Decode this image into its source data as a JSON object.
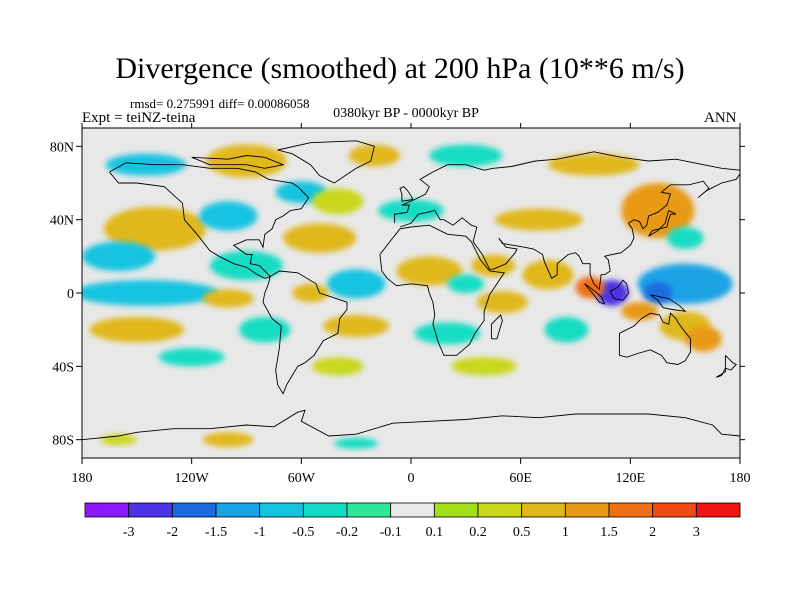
{
  "chart_data": {
    "type": "heatmap",
    "title": "Divergence (smoothed) at 200 hPa (10**6 m/s)",
    "stats": "rmsd= 0.275991  diff= 0.00086058",
    "experiment": "Expt = teiNZ-teina",
    "period": "0380kyr BP - 0000kyr BP",
    "season": "ANN",
    "xlim": [
      -180,
      180
    ],
    "ylim": [
      -90,
      90
    ],
    "x_ticks": [
      {
        "value": -180,
        "label": "180"
      },
      {
        "value": -120,
        "label": "120W"
      },
      {
        "value": -60,
        "label": "60W"
      },
      {
        "value": 0,
        "label": "0"
      },
      {
        "value": 60,
        "label": "60E"
      },
      {
        "value": 120,
        "label": "120E"
      },
      {
        "value": 180,
        "label": "180"
      }
    ],
    "y_ticks": [
      {
        "value": 80,
        "label": "80N"
      },
      {
        "value": 40,
        "label": "40N"
      },
      {
        "value": 0,
        "label": "0"
      },
      {
        "value": -40,
        "label": "40S"
      },
      {
        "value": -80,
        "label": "80S"
      }
    ],
    "colorbar": {
      "colors": [
        "#8c1aff",
        "#4d33e6",
        "#1a6ae0",
        "#1aa3e6",
        "#14c3e0",
        "#14dcc4",
        "#2ee89a",
        "#e8e8e8",
        "#a3e01a",
        "#c8d81a",
        "#e0b81a",
        "#e89a14",
        "#ef7014",
        "#f04a14",
        "#f01414"
      ],
      "labels": [
        "-3",
        "-2",
        "-1.5",
        "-1",
        "-0.5",
        "-0.2",
        "-0.1",
        "0.1",
        "0.2",
        "0.5",
        "1",
        "1.5",
        "2",
        "3"
      ]
    },
    "field_blobs": [
      {
        "lon": 150,
        "lat": 5,
        "rlon": 26,
        "rlat": 11,
        "value": -1.4
      },
      {
        "lon": 110,
        "lat": 0,
        "rlon": 9,
        "rlat": 7,
        "value": -2.1
      },
      {
        "lon": 135,
        "lat": 0,
        "rlon": 8,
        "rlat": 6,
        "value": -1.8
      },
      {
        "lon": 98,
        "lat": 3,
        "rlon": 8,
        "rlat": 6,
        "value": 1.6
      },
      {
        "lon": 125,
        "lat": -10,
        "rlon": 10,
        "rlat": 5,
        "value": 1.2
      },
      {
        "lon": 150,
        "lat": -18,
        "rlon": 14,
        "rlat": 8,
        "value": 0.9
      },
      {
        "lon": 160,
        "lat": -25,
        "rlon": 10,
        "rlat": 7,
        "value": 1.3
      },
      {
        "lon": 85,
        "lat": -20,
        "rlon": 12,
        "rlat": 7,
        "value": -0.5
      },
      {
        "lon": 75,
        "lat": 10,
        "rlon": 14,
        "rlat": 8,
        "value": 0.6
      },
      {
        "lon": 70,
        "lat": 40,
        "rlon": 24,
        "rlat": 6,
        "value": 0.8
      },
      {
        "lon": 135,
        "lat": 45,
        "rlon": 20,
        "rlat": 15,
        "value": 1.2
      },
      {
        "lon": 150,
        "lat": 30,
        "rlon": 10,
        "rlat": 6,
        "value": -0.5
      },
      {
        "lon": 100,
        "lat": 70,
        "rlon": 25,
        "rlat": 6,
        "value": 0.6
      },
      {
        "lon": 30,
        "lat": 75,
        "rlon": 20,
        "rlat": 6,
        "value": -0.3
      },
      {
        "lon": -20,
        "lat": 75,
        "rlon": 14,
        "rlat": 6,
        "value": 0.6
      },
      {
        "lon": -90,
        "lat": 72,
        "rlon": 22,
        "rlat": 9,
        "value": 0.5
      },
      {
        "lon": -145,
        "lat": 70,
        "rlon": 22,
        "rlat": 6,
        "value": -0.6
      },
      {
        "lon": -60,
        "lat": 55,
        "rlon": 14,
        "rlat": 6,
        "value": -0.6
      },
      {
        "lon": -140,
        "lat": 35,
        "rlon": 28,
        "rlat": 12,
        "value": 0.7
      },
      {
        "lon": -100,
        "lat": 42,
        "rlon": 16,
        "rlat": 8,
        "value": -0.6
      },
      {
        "lon": -160,
        "lat": 20,
        "rlon": 20,
        "rlat": 8,
        "value": -0.6
      },
      {
        "lon": -50,
        "lat": 30,
        "rlon": 20,
        "rlat": 8,
        "value": 0.5
      },
      {
        "lon": -40,
        "lat": 50,
        "rlon": 14,
        "rlat": 7,
        "value": 0.4
      },
      {
        "lon": 0,
        "lat": 45,
        "rlon": 18,
        "rlat": 6,
        "value": -0.4
      },
      {
        "lon": -145,
        "lat": 0,
        "rlon": 40,
        "rlat": 7,
        "value": -0.6
      },
      {
        "lon": -30,
        "lat": 5,
        "rlon": 16,
        "rlat": 8,
        "value": -0.8
      },
      {
        "lon": 10,
        "lat": 12,
        "rlon": 18,
        "rlat": 8,
        "value": 0.7
      },
      {
        "lon": 30,
        "lat": 5,
        "rlon": 10,
        "rlat": 5,
        "value": -0.5
      },
      {
        "lon": 45,
        "lat": 15,
        "rlon": 12,
        "rlat": 6,
        "value": 0.5
      },
      {
        "lon": -90,
        "lat": 15,
        "rlon": 20,
        "rlat": 8,
        "value": -0.5
      },
      {
        "lon": -100,
        "lat": -3,
        "rlon": 14,
        "rlat": 5,
        "value": 0.6
      },
      {
        "lon": -55,
        "lat": 0,
        "rlon": 10,
        "rlat": 5,
        "value": 0.9
      },
      {
        "lon": -150,
        "lat": -20,
        "rlon": 26,
        "rlat": 7,
        "value": 0.6
      },
      {
        "lon": -80,
        "lat": -20,
        "rlon": 14,
        "rlat": 7,
        "value": -0.5
      },
      {
        "lon": -30,
        "lat": -18,
        "rlon": 18,
        "rlat": 6,
        "value": 0.6
      },
      {
        "lon": 20,
        "lat": -22,
        "rlon": 18,
        "rlat": 6,
        "value": -0.5
      },
      {
        "lon": 50,
        "lat": -5,
        "rlon": 14,
        "rlat": 6,
        "value": 0.5
      },
      {
        "lon": -120,
        "lat": -35,
        "rlon": 18,
        "rlat": 5,
        "value": -0.4
      },
      {
        "lon": -40,
        "lat": -40,
        "rlon": 14,
        "rlat": 5,
        "value": 0.4
      },
      {
        "lon": 40,
        "lat": -40,
        "rlon": 18,
        "rlat": 5,
        "value": 0.3
      },
      {
        "lon": -100,
        "lat": -80,
        "rlon": 14,
        "rlat": 4,
        "value": 0.6
      },
      {
        "lon": -160,
        "lat": -80,
        "rlon": 10,
        "rlat": 3,
        "value": 0.3
      },
      {
        "lon": -30,
        "lat": -82,
        "rlon": 12,
        "rlat": 3,
        "value": -0.3
      }
    ]
  }
}
